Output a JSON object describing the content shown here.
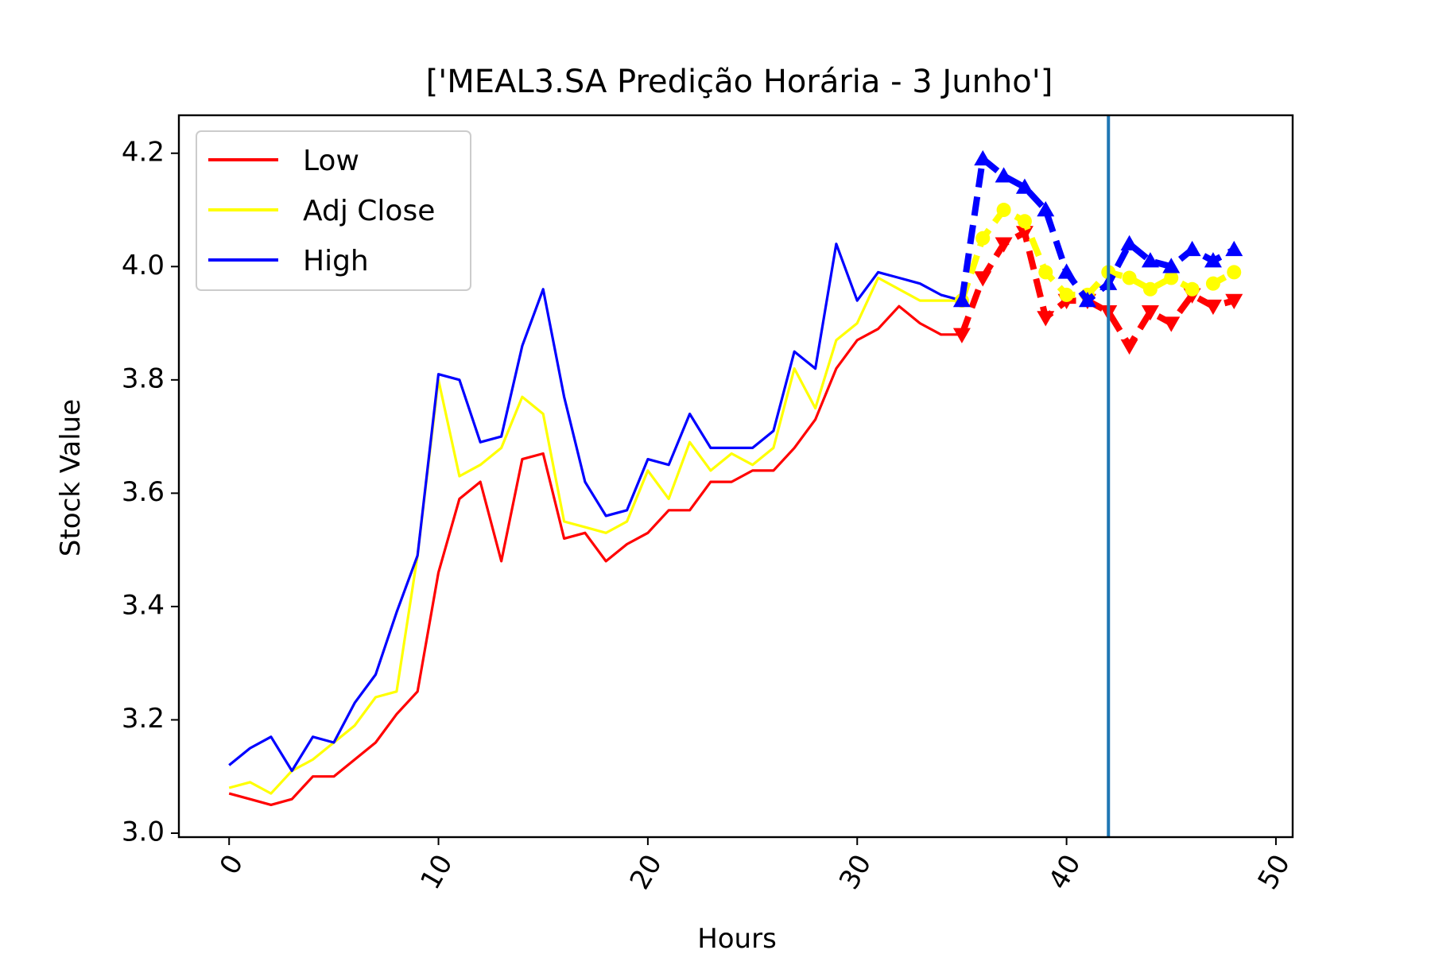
{
  "chart_data": {
    "type": "line",
    "title": "['MEAL3.SA Predição Horária - 3 Junho']",
    "xlabel": "Hours",
    "ylabel": "Stock Value",
    "xlim": [
      -2.4,
      50.8
    ],
    "ylim": [
      2.993,
      4.267
    ],
    "x_ticks": [
      0,
      10,
      20,
      30,
      40,
      50
    ],
    "y_ticks": [
      3.0,
      3.2,
      3.4,
      3.6,
      3.8,
      4.0,
      4.2
    ],
    "x_tick_labels": [
      "0",
      "10",
      "20",
      "30",
      "40",
      "50"
    ],
    "y_tick_labels": [
      "3.0",
      "3.2",
      "3.4",
      "3.6",
      "3.8",
      "4.0",
      "4.2"
    ],
    "grid": false,
    "legend_position": "upper-left",
    "series": [
      {
        "name": "Low",
        "color": "#ff0000",
        "x": [
          0,
          1,
          2,
          3,
          4,
          5,
          6,
          7,
          8,
          9,
          10,
          11,
          12,
          13,
          14,
          15,
          16,
          17,
          18,
          19,
          20,
          21,
          22,
          23,
          24,
          25,
          26,
          27,
          28,
          29,
          30,
          31,
          32,
          33,
          34,
          35
        ],
        "values": [
          3.07,
          3.06,
          3.05,
          3.06,
          3.1,
          3.1,
          3.13,
          3.16,
          3.21,
          3.25,
          3.46,
          3.59,
          3.62,
          3.48,
          3.66,
          3.67,
          3.52,
          3.53,
          3.48,
          3.51,
          3.53,
          3.57,
          3.57,
          3.62,
          3.62,
          3.64,
          3.64,
          3.68,
          3.73,
          3.82,
          3.87,
          3.89,
          3.93,
          3.9,
          3.88,
          3.88
        ]
      },
      {
        "name": "Adj Close",
        "color": "#ffff00",
        "x": [
          0,
          1,
          2,
          3,
          4,
          5,
          6,
          7,
          8,
          9,
          10,
          11,
          12,
          13,
          14,
          15,
          16,
          17,
          18,
          19,
          20,
          21,
          22,
          23,
          24,
          25,
          26,
          27,
          28,
          29,
          30,
          31,
          32,
          33,
          34,
          35
        ],
        "values": [
          3.08,
          3.09,
          3.07,
          3.11,
          3.13,
          3.16,
          3.19,
          3.24,
          3.25,
          3.49,
          3.8,
          3.63,
          3.65,
          3.68,
          3.77,
          3.74,
          3.55,
          3.54,
          3.53,
          3.55,
          3.64,
          3.59,
          3.69,
          3.64,
          3.67,
          3.65,
          3.68,
          3.82,
          3.75,
          3.87,
          3.9,
          3.98,
          3.96,
          3.94,
          3.94,
          3.94
        ]
      },
      {
        "name": "High",
        "color": "#0000ff",
        "x": [
          0,
          1,
          2,
          3,
          4,
          5,
          6,
          7,
          8,
          9,
          10,
          11,
          12,
          13,
          14,
          15,
          16,
          17,
          18,
          19,
          20,
          21,
          22,
          23,
          24,
          25,
          26,
          27,
          28,
          29,
          30,
          31,
          32,
          33,
          34,
          35
        ],
        "values": [
          3.12,
          3.15,
          3.17,
          3.11,
          3.17,
          3.16,
          3.23,
          3.28,
          3.39,
          3.49,
          3.81,
          3.8,
          3.69,
          3.7,
          3.86,
          3.96,
          3.77,
          3.62,
          3.56,
          3.57,
          3.66,
          3.65,
          3.74,
          3.68,
          3.68,
          3.68,
          3.71,
          3.85,
          3.82,
          4.04,
          3.94,
          3.99,
          3.98,
          3.97,
          3.95,
          3.94
        ]
      }
    ],
    "predicted_series": [
      {
        "color": "#ff0000",
        "marker": "triangle-down",
        "x": [
          35,
          36,
          37,
          38,
          39,
          40,
          41,
          42,
          43,
          44,
          45,
          46,
          47,
          48
        ],
        "values": [
          3.88,
          3.98,
          4.04,
          4.06,
          3.91,
          3.94,
          3.94,
          3.92,
          3.86,
          3.92,
          3.9,
          3.95,
          3.93,
          3.94
        ]
      },
      {
        "color": "#ffff00",
        "marker": "circle",
        "x": [
          35,
          36,
          37,
          38,
          39,
          40,
          41,
          42,
          43,
          44,
          45,
          46,
          47,
          48
        ],
        "values": [
          3.94,
          4.05,
          4.1,
          4.08,
          3.99,
          3.95,
          3.95,
          3.99,
          3.98,
          3.96,
          3.98,
          3.96,
          3.97,
          3.99
        ]
      },
      {
        "color": "#0000ff",
        "marker": "triangle-up",
        "x": [
          35,
          36,
          37,
          38,
          39,
          40,
          41,
          42,
          43,
          44,
          45,
          46,
          47,
          48
        ],
        "values": [
          3.94,
          4.19,
          4.16,
          4.14,
          4.1,
          3.99,
          3.94,
          3.97,
          4.04,
          4.01,
          4.0,
          4.03,
          4.01,
          4.03
        ]
      }
    ],
    "vertical_line": {
      "x": 42,
      "color": "#1f77b4"
    }
  }
}
